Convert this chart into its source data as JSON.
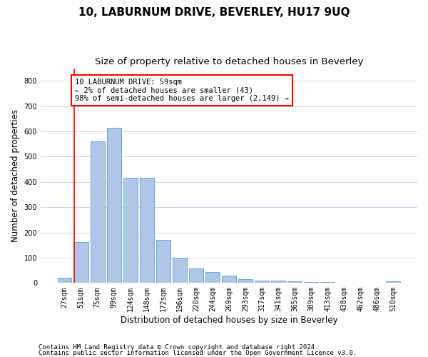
{
  "title": "10, LABURNUM DRIVE, BEVERLEY, HU17 9UQ",
  "subtitle": "Size of property relative to detached houses in Beverley",
  "xlabel": "Distribution of detached houses by size in Beverley",
  "ylabel": "Number of detached properties",
  "bar_color": "#aec6e8",
  "bar_edge_color": "#5b9bd5",
  "categories": [
    "27sqm",
    "51sqm",
    "75sqm",
    "99sqm",
    "124sqm",
    "148sqm",
    "172sqm",
    "196sqm",
    "220sqm",
    "244sqm",
    "269sqm",
    "293sqm",
    "317sqm",
    "341sqm",
    "365sqm",
    "389sqm",
    "413sqm",
    "438sqm",
    "462sqm",
    "486sqm",
    "510sqm"
  ],
  "values": [
    20,
    163,
    560,
    615,
    415,
    415,
    170,
    100,
    57,
    42,
    30,
    15,
    10,
    10,
    8,
    5,
    3,
    2,
    2,
    1,
    7
  ],
  "ylim": [
    0,
    850
  ],
  "yticks": [
    0,
    100,
    200,
    300,
    400,
    500,
    600,
    700,
    800
  ],
  "annotation_box_text": "10 LABURNUM DRIVE: 59sqm\n← 2% of detached houses are smaller (43)\n98% of semi-detached houses are larger (2,149) →",
  "footer_line1": "Contains HM Land Registry data © Crown copyright and database right 2024.",
  "footer_line2": "Contains public sector information licensed under the Open Government Licence v3.0.",
  "background_color": "#ffffff",
  "grid_color": "#c8d4e8",
  "title_fontsize": 11,
  "subtitle_fontsize": 9.5,
  "axis_label_fontsize": 8.5,
  "tick_fontsize": 7,
  "footer_fontsize": 6.5,
  "annotation_fontsize": 7.5
}
